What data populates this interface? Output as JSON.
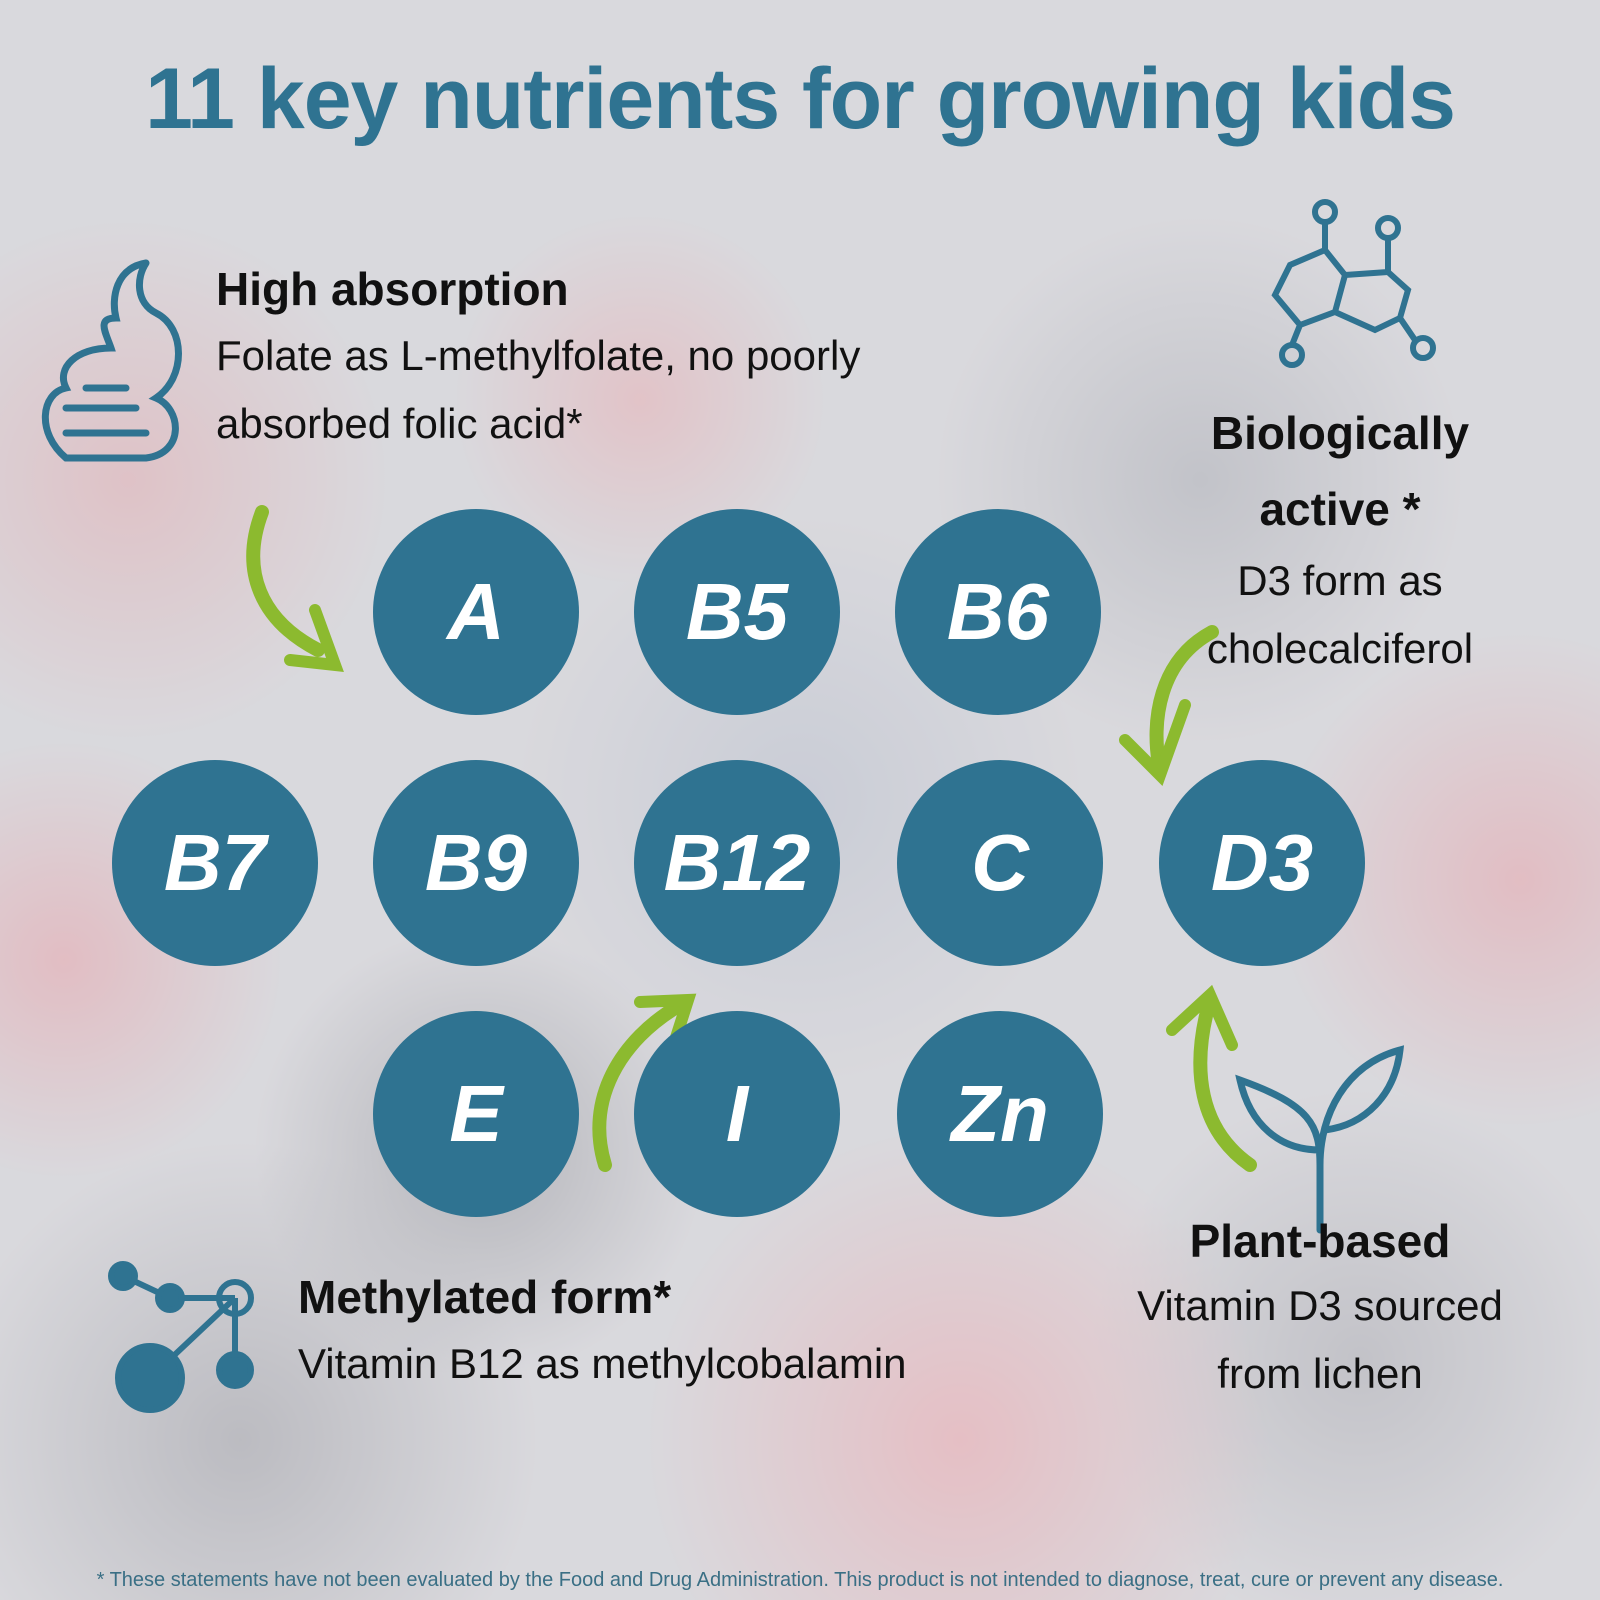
{
  "title": "11 key nutrients for growing kids",
  "nutrients": [
    "A",
    "B5",
    "B6",
    "B7",
    "B9",
    "B12",
    "C",
    "D3",
    "E",
    "I",
    "Zn"
  ],
  "features": {
    "high_absorption": {
      "heading": "High absorption",
      "line1": "Folate as L-methylfolate, no poorly",
      "line2": "absorbed folic acid*",
      "icon": "stomach-icon"
    },
    "biologically_active": {
      "heading1": "Biologically",
      "heading2": "active *",
      "line1": "D3 form as",
      "line2": "cholecalciferol",
      "icon": "molecule-icon"
    },
    "methylated_form": {
      "heading": "Methylated form*",
      "line1": "Vitamin B12 as methylcobalamin",
      "icon": "molecule-nodes-icon"
    },
    "plant_based": {
      "heading": "Plant-based",
      "line1": "Vitamin D3 sourced",
      "line2": "from lichen",
      "icon": "sprout-icon"
    }
  },
  "footer": "* These statements have not been evaluated by the Food and Drug Administration. This product is not intended to diagnose, treat, cure or prevent any disease.",
  "colors": {
    "primary": "#2f7391",
    "accent": "#8cba2f"
  }
}
